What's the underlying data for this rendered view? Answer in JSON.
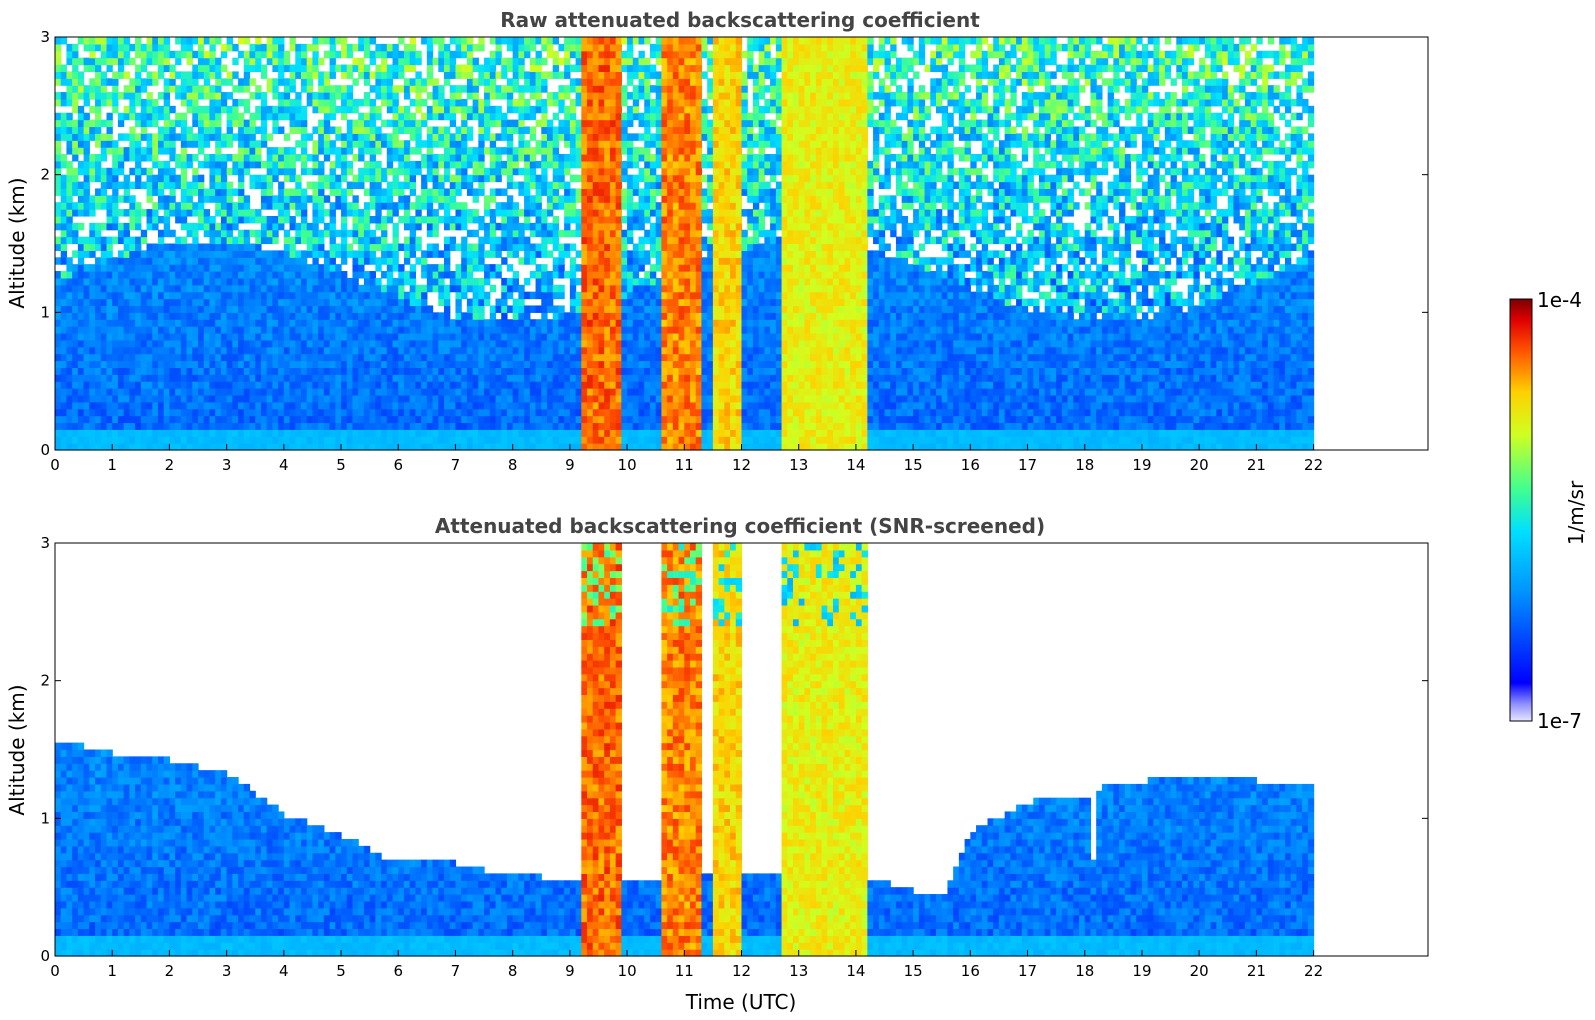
{
  "chart_data": [
    {
      "type": "heatmap",
      "title": "Raw attenuated backscattering coefficient",
      "xlabel": "",
      "ylabel": "Altitude (km)",
      "x_ticks": [
        "0",
        "1",
        "2",
        "3",
        "4",
        "5",
        "6",
        "7",
        "8",
        "9",
        "10",
        "11",
        "12",
        "13",
        "14",
        "15",
        "16",
        "17",
        "18",
        "19",
        "20",
        "21",
        "22"
      ],
      "y_ticks": [
        "0",
        "1",
        "2",
        "3"
      ],
      "xlim": [
        0,
        24
      ],
      "ylim": [
        0,
        3
      ],
      "data_extent_x": [
        0,
        22
      ],
      "screened": false,
      "noise_level": 0.6,
      "features": [
        {
          "name": "boundary layer",
          "x": [
            0,
            22
          ],
          "top_km": 1.3,
          "level": 0.28
        },
        {
          "name": "surface layer",
          "x": [
            0,
            22
          ],
          "top_km": 0.1,
          "level": 0.38
        },
        {
          "name": "cloud shafts",
          "x": [
            9.2,
            9.9
          ],
          "top_km": 3.0,
          "level": 0.92
        },
        {
          "name": "cloud shafts",
          "x": [
            10.6,
            11.3
          ],
          "top_km": 3.0,
          "level": 0.9
        },
        {
          "name": "cloud shafts",
          "x": [
            11.5,
            12.0
          ],
          "top_km": 3.0,
          "level": 0.82
        },
        {
          "name": "cloud shafts",
          "x": [
            12.7,
            14.2
          ],
          "top_km": 3.0,
          "level": 0.78
        }
      ]
    },
    {
      "type": "heatmap",
      "title": "Attenuated backscattering coefficient (SNR-screened)",
      "xlabel": "Time (UTC)",
      "ylabel": "Altitude (km)",
      "x_ticks": [
        "0",
        "1",
        "2",
        "3",
        "4",
        "5",
        "6",
        "7",
        "8",
        "9",
        "10",
        "11",
        "12",
        "13",
        "14",
        "15",
        "16",
        "17",
        "18",
        "19",
        "20",
        "21",
        "22"
      ],
      "y_ticks": [
        "0",
        "1",
        "2",
        "3"
      ],
      "xlim": [
        0,
        24
      ],
      "ylim": [
        0,
        3
      ],
      "data_extent_x": [
        0,
        22
      ],
      "screened": true,
      "boundary_layer_top_km": [
        [
          0,
          1.55
        ],
        [
          1,
          1.45
        ],
        [
          2,
          1.4
        ],
        [
          3,
          1.3
        ],
        [
          4,
          1.0
        ],
        [
          5,
          0.85
        ],
        [
          5.7,
          0.7
        ],
        [
          6.5,
          0.7
        ],
        [
          7.5,
          0.6
        ],
        [
          8.5,
          0.55
        ],
        [
          9.2,
          0.5
        ],
        [
          12,
          0.6
        ],
        [
          14.2,
          0.55
        ],
        [
          15,
          0.45
        ],
        [
          15.5,
          0.45
        ],
        [
          16,
          0.9
        ],
        [
          17,
          1.1
        ],
        [
          18,
          1.15
        ],
        [
          18.05,
          0.4
        ],
        [
          18.2,
          1.2
        ],
        [
          19,
          1.25
        ],
        [
          20,
          1.3
        ],
        [
          21,
          1.25
        ],
        [
          22,
          1.2
        ]
      ],
      "boundary_layer_level": 0.25
    }
  ],
  "colorbar": {
    "label": "1/m/sr",
    "max_label": "1e-4",
    "min_label": "1e-7",
    "scale": "log",
    "colormap": "jet"
  }
}
